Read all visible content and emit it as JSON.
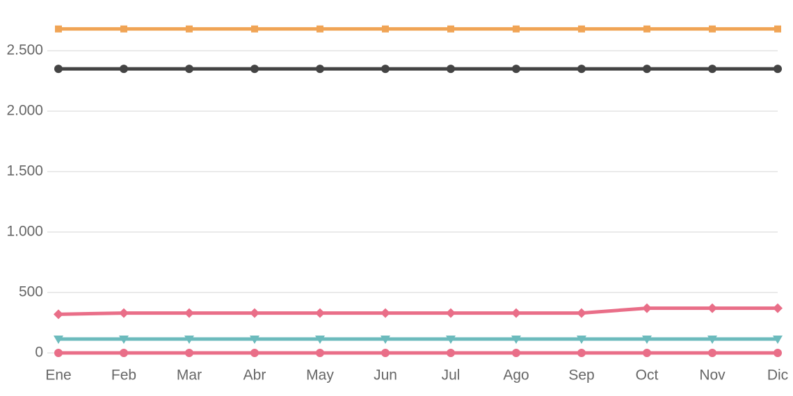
{
  "chart_data": {
    "type": "line",
    "categories": [
      "Ene",
      "Feb",
      "Mar",
      "Abr",
      "May",
      "Jun",
      "Jul",
      "Ago",
      "Sep",
      "Oct",
      "Nov",
      "Dic"
    ],
    "series": [
      {
        "color": "#f0a455",
        "marker": "square",
        "values": [
          2680,
          2680,
          2680,
          2680,
          2680,
          2680,
          2680,
          2680,
          2680,
          2680,
          2680,
          2680
        ]
      },
      {
        "color": "#444444",
        "marker": "circle",
        "values": [
          2350,
          2350,
          2350,
          2350,
          2350,
          2350,
          2350,
          2350,
          2350,
          2350,
          2350,
          2350
        ]
      },
      {
        "color": "#e96e88",
        "marker": "diamond",
        "values": [
          320,
          330,
          330,
          330,
          330,
          330,
          330,
          330,
          330,
          370,
          370,
          370
        ]
      },
      {
        "color": "#6cbbbd",
        "marker": "triangle-down",
        "values": [
          115,
          115,
          115,
          115,
          115,
          115,
          115,
          115,
          115,
          115,
          115,
          115
        ]
      },
      {
        "color": "#e96e88",
        "marker": "circle",
        "values": [
          0,
          0,
          0,
          0,
          0,
          0,
          0,
          0,
          0,
          0,
          0,
          0
        ]
      }
    ],
    "ylim": [
      0,
      2700
    ],
    "yticks": [
      0,
      500,
      {
        "value": 1000,
        "label": "1.000"
      },
      {
        "value": 1500,
        "label": "1.500"
      },
      {
        "value": 2000,
        "label": "2.000"
      },
      {
        "value": 2500,
        "label": "2.500"
      }
    ],
    "grid": true
  }
}
